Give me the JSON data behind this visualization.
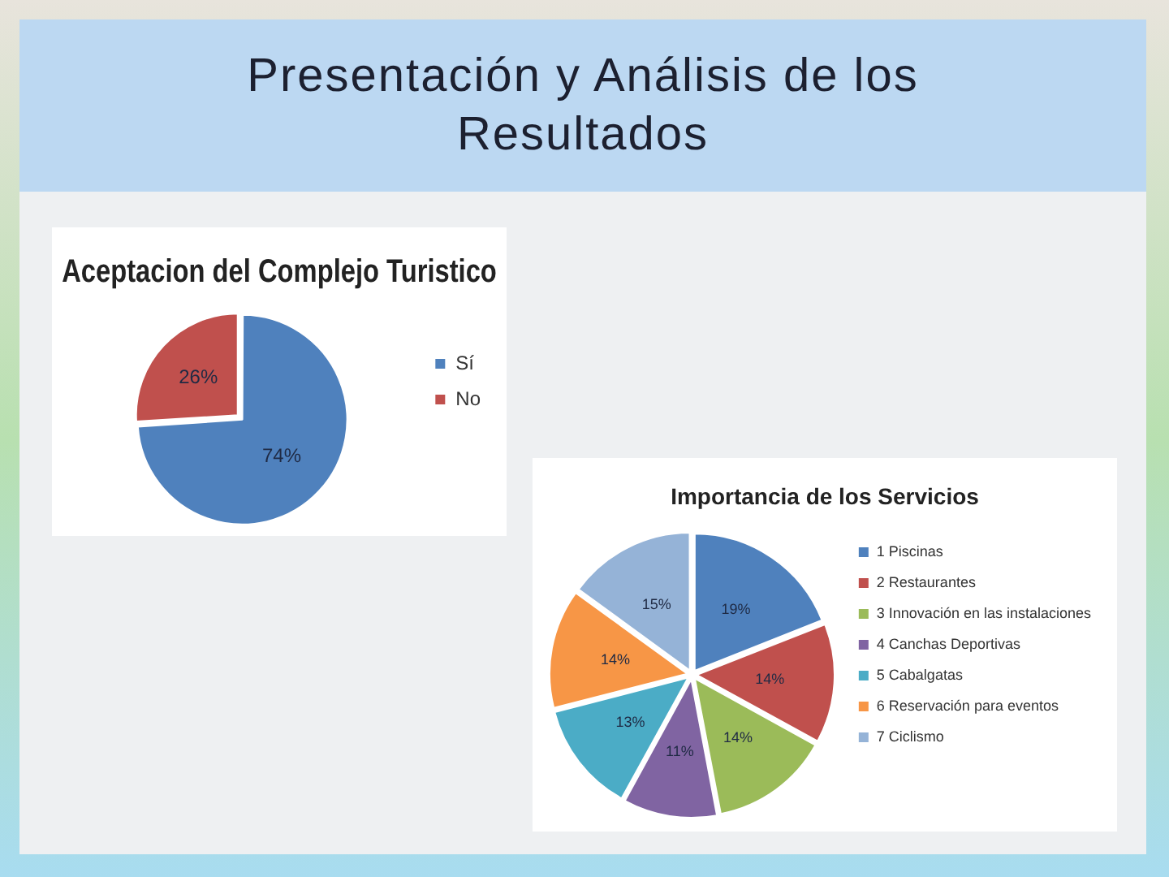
{
  "chart_data": [
    {
      "type": "other",
      "title": "Presentación y Análisis de los Resultados"
    },
    {
      "type": "pie",
      "title": "Aceptacion del Complejo Turistico",
      "categories": [
        "Sí",
        "No"
      ],
      "values": [
        74,
        26
      ],
      "value_labels": [
        "74%",
        "26%"
      ],
      "colors": [
        "#4f81bd",
        "#c0504d"
      ],
      "legend": "right"
    },
    {
      "type": "pie",
      "title": "Importancia de los Servicios",
      "categories": [
        "1 Piscinas",
        "2 Restaurantes",
        "3 Innovación en las instalaciones",
        "4 Canchas Deportivas",
        "5 Cabalgatas",
        "6 Reservación para eventos",
        "7 Ciclismo"
      ],
      "values": [
        19,
        14,
        14,
        11,
        13,
        14,
        15
      ],
      "value_labels": [
        "19%",
        "14%",
        "14%",
        "11%",
        "13%",
        "14%",
        "15%"
      ],
      "colors": [
        "#4f81bd",
        "#c0504d",
        "#9bbb59",
        "#8064a2",
        "#4bacc6",
        "#f79646",
        "#95b3d7"
      ],
      "legend": "right"
    }
  ]
}
